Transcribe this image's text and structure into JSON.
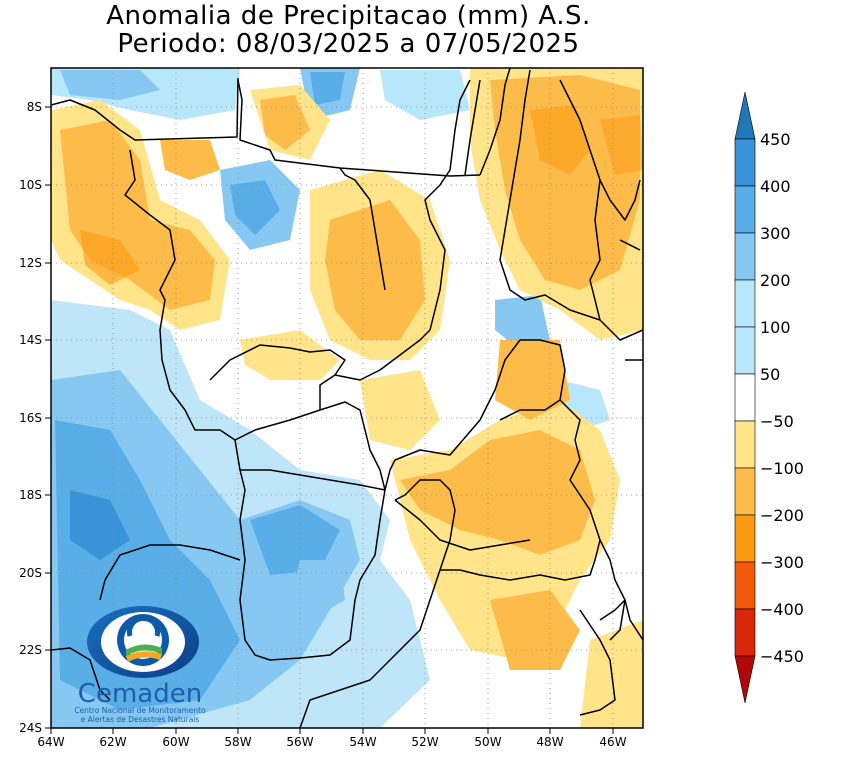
{
  "title": {
    "line1": "Anomalia de Precipitacao (mm) A.S.",
    "line2": "Periodo: 08/03/2025 a 07/05/2025"
  },
  "axes": {
    "x_ticks": [
      "64W",
      "62W",
      "60W",
      "58W",
      "56W",
      "54W",
      "52W",
      "50W",
      "48W",
      "46W"
    ],
    "y_ticks": [
      "8S",
      "10S",
      "12S",
      "14S",
      "16S",
      "18S",
      "20S",
      "22S",
      "24S"
    ],
    "lon_range": [
      -64,
      -45
    ],
    "lat_range": [
      -24,
      -7.3
    ]
  },
  "colorbar": {
    "labels": [
      "450",
      "400",
      "300",
      "200",
      "100",
      "50",
      "−50",
      "−100",
      "−200",
      "−300",
      "−400",
      "−450"
    ],
    "colors": [
      "#1f78b8",
      "#3a92d8",
      "#5aaee8",
      "#86c8f2",
      "#b8e6fa",
      "#ffffff",
      "#ffe48a",
      "#fdbb4a",
      "#fb9a10",
      "#f05a0a",
      "#d8260a",
      "#b00808"
    ]
  },
  "logo": {
    "name": "Cemaden",
    "subtitle_line1": "Centro Nacional de Monitoramento",
    "subtitle_line2": "e Alertas de Desastres Naturais"
  }
}
